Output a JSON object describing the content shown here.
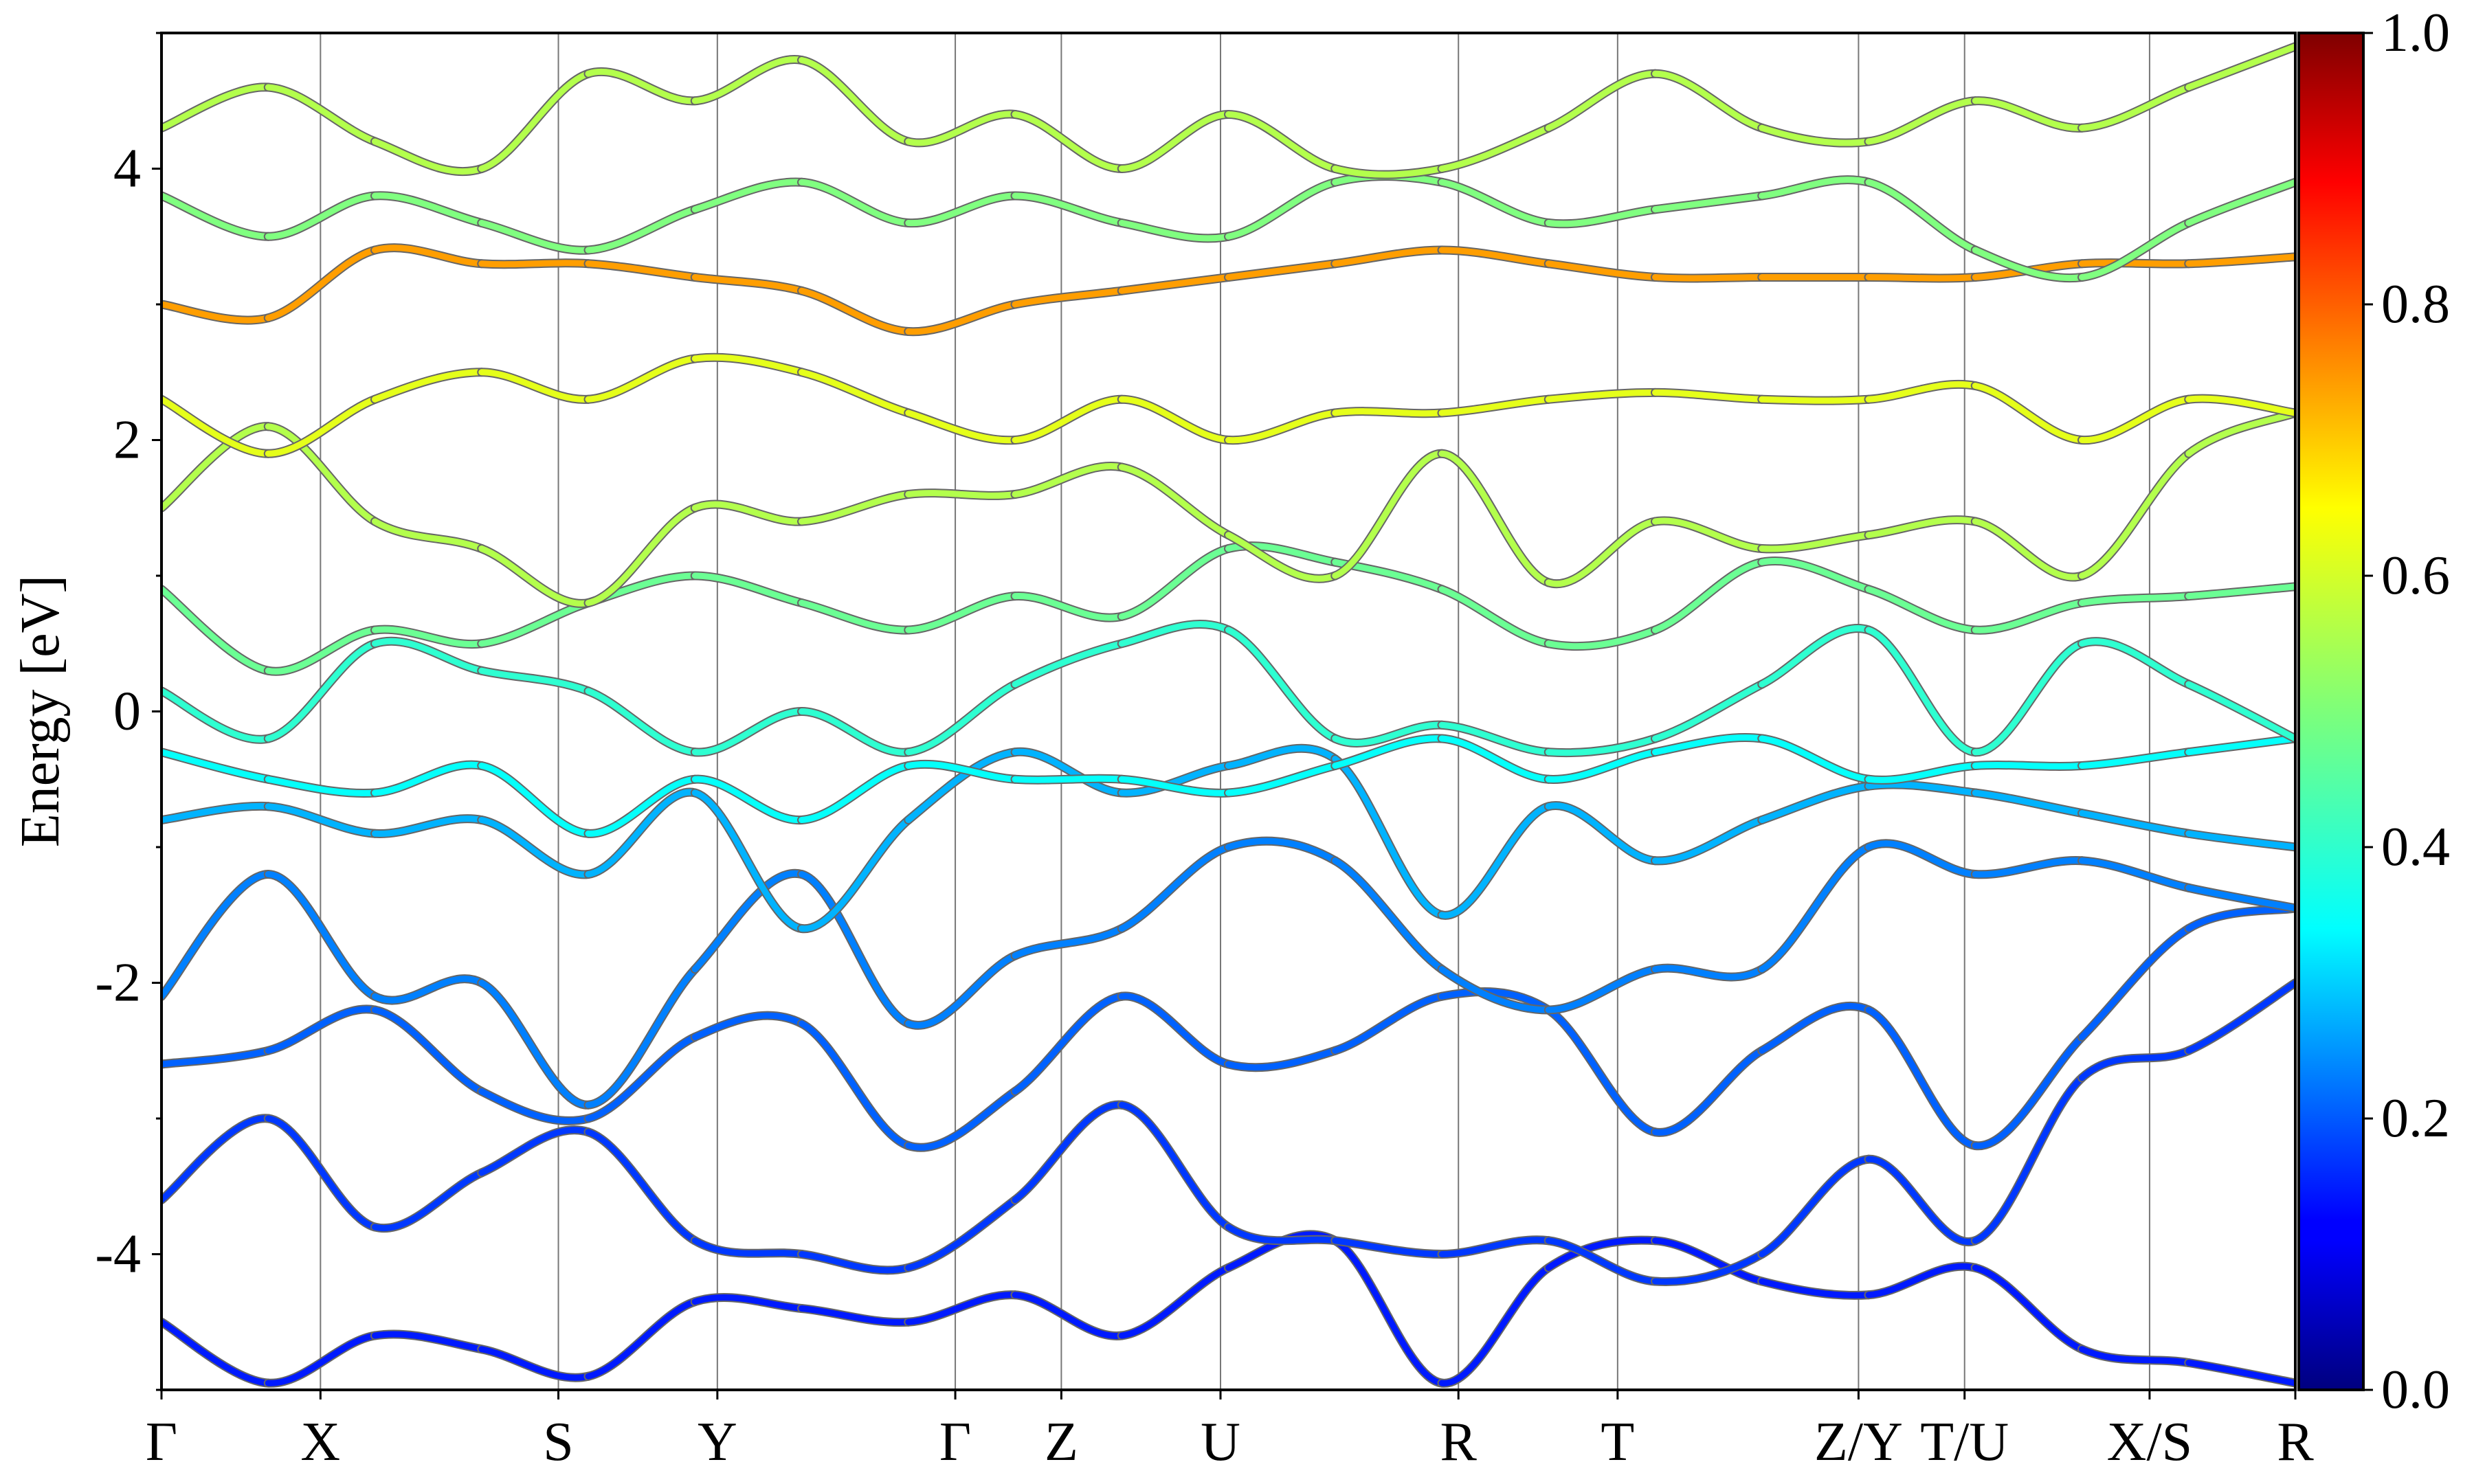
{
  "chart_data": {
    "type": "line",
    "title": "",
    "xlabel": "",
    "ylabel": "Energy [eV]",
    "ylim": [
      -5,
      5
    ],
    "yticks": [
      -4,
      -2,
      0,
      2,
      4
    ],
    "xticks": [
      {
        "label": "Γ",
        "pos": 0.0
      },
      {
        "label": "X",
        "pos": 0.0745
      },
      {
        "label": "S",
        "pos": 0.186
      },
      {
        "label": "Y",
        "pos": 0.2605
      },
      {
        "label": "Γ",
        "pos": 0.372
      },
      {
        "label": "Z",
        "pos": 0.4217
      },
      {
        "label": "U",
        "pos": 0.4963
      },
      {
        "label": "R",
        "pos": 0.6078
      },
      {
        "label": "T",
        "pos": 0.6824
      },
      {
        "label": "Z/Y",
        "pos": 0.7953
      },
      {
        "label": "T/U",
        "pos": 0.845
      },
      {
        "label": "X/S",
        "pos": 0.9317
      },
      {
        "label": "R",
        "pos": 1.0
      }
    ],
    "colorbar": {
      "colormap": "jet",
      "range": [
        0.0,
        1.0
      ],
      "ticks": [
        "0.0",
        "0.2",
        "0.4",
        "0.6",
        "0.8",
        "1.0"
      ]
    },
    "series": [
      {
        "x": [
          0,
          0.05,
          0.1,
          0.15,
          0.2,
          0.25,
          0.3,
          0.35,
          0.4,
          0.45,
          0.5,
          0.55,
          0.6,
          0.65,
          0.7,
          0.75,
          0.8,
          0.85,
          0.9,
          0.95,
          1
        ],
        "values": [
          -4.5,
          -4.95,
          -4.6,
          -4.7,
          -4.9,
          -4.35,
          -4.4,
          -4.5,
          -4.3,
          -4.6,
          -4.1,
          -3.9,
          -4.95,
          -4.1,
          -3.9,
          -4.2,
          -4.3,
          -4.1,
          -4.7,
          -4.8,
          -4.95
        ],
        "weights": [
          0.15,
          0.15,
          0.15,
          0.15,
          0.15,
          0.15,
          0.15,
          0.15,
          0.15,
          0.15,
          0.15,
          0.15,
          0.15,
          0.15,
          0.15,
          0.15,
          0.15,
          0.15,
          0.15,
          0.15,
          0.15
        ]
      },
      {
        "x": [
          0,
          0.05,
          0.1,
          0.15,
          0.2,
          0.25,
          0.3,
          0.35,
          0.4,
          0.45,
          0.5,
          0.55,
          0.6,
          0.65,
          0.7,
          0.75,
          0.8,
          0.85,
          0.9,
          0.95,
          1
        ],
        "values": [
          -3.6,
          -3.0,
          -3.8,
          -3.4,
          -3.1,
          -3.9,
          -4.0,
          -4.1,
          -3.6,
          -2.9,
          -3.8,
          -3.9,
          -4.0,
          -3.9,
          -4.2,
          -4.0,
          -3.3,
          -3.9,
          -2.7,
          -2.5,
          -2.0
        ],
        "weights": [
          0.18,
          0.18,
          0.18,
          0.18,
          0.18,
          0.18,
          0.18,
          0.18,
          0.18,
          0.18,
          0.18,
          0.18,
          0.18,
          0.18,
          0.18,
          0.18,
          0.18,
          0.18,
          0.18,
          0.18,
          0.18
        ]
      },
      {
        "x": [
          0,
          0.05,
          0.1,
          0.15,
          0.2,
          0.25,
          0.3,
          0.35,
          0.4,
          0.45,
          0.5,
          0.55,
          0.6,
          0.65,
          0.7,
          0.75,
          0.8,
          0.85,
          0.9,
          0.95,
          1
        ],
        "values": [
          -2.6,
          -2.5,
          -2.2,
          -2.8,
          -3.0,
          -2.4,
          -2.3,
          -3.2,
          -2.8,
          -2.1,
          -2.6,
          -2.5,
          -2.1,
          -2.2,
          -3.1,
          -2.5,
          -2.2,
          -3.2,
          -2.4,
          -1.6,
          -1.45
        ],
        "weights": [
          0.22,
          0.22,
          0.22,
          0.22,
          0.22,
          0.22,
          0.22,
          0.22,
          0.22,
          0.22,
          0.22,
          0.22,
          0.22,
          0.22,
          0.22,
          0.22,
          0.22,
          0.22,
          0.22,
          0.22,
          0.22
        ]
      },
      {
        "x": [
          0,
          0.05,
          0.1,
          0.15,
          0.2,
          0.25,
          0.3,
          0.35,
          0.4,
          0.45,
          0.5,
          0.55,
          0.6,
          0.65,
          0.7,
          0.75,
          0.8,
          0.85,
          0.9,
          0.95,
          1
        ],
        "values": [
          -2.1,
          -1.2,
          -2.1,
          -2.0,
          -2.9,
          -1.9,
          -1.2,
          -2.3,
          -1.8,
          -1.6,
          -1.0,
          -1.1,
          -1.9,
          -2.2,
          -1.9,
          -1.9,
          -1.0,
          -1.2,
          -1.1,
          -1.3,
          -1.45
        ],
        "weights": [
          0.25,
          0.25,
          0.25,
          0.25,
          0.25,
          0.25,
          0.25,
          0.25,
          0.25,
          0.25,
          0.25,
          0.25,
          0.25,
          0.25,
          0.25,
          0.25,
          0.25,
          0.25,
          0.25,
          0.25,
          0.25
        ]
      },
      {
        "x": [
          0,
          0.05,
          0.1,
          0.15,
          0.2,
          0.25,
          0.3,
          0.35,
          0.4,
          0.45,
          0.5,
          0.55,
          0.6,
          0.65,
          0.7,
          0.75,
          0.8,
          0.85,
          0.9,
          0.95,
          1
        ],
        "values": [
          -0.8,
          -0.7,
          -0.9,
          -0.8,
          -1.2,
          -0.6,
          -1.6,
          -0.8,
          -0.3,
          -0.6,
          -0.4,
          -0.35,
          -1.5,
          -0.7,
          -1.1,
          -0.8,
          -0.55,
          -0.6,
          -0.75,
          -0.9,
          -1.0
        ],
        "weights": [
          0.3,
          0.3,
          0.3,
          0.3,
          0.3,
          0.3,
          0.3,
          0.3,
          0.3,
          0.3,
          0.3,
          0.3,
          0.3,
          0.3,
          0.3,
          0.3,
          0.3,
          0.3,
          0.3,
          0.3,
          0.3
        ]
      },
      {
        "x": [
          0,
          0.05,
          0.1,
          0.15,
          0.2,
          0.25,
          0.3,
          0.35,
          0.4,
          0.45,
          0.5,
          0.55,
          0.6,
          0.65,
          0.7,
          0.75,
          0.8,
          0.85,
          0.9,
          0.95,
          1
        ],
        "values": [
          -0.3,
          -0.5,
          -0.6,
          -0.4,
          -0.9,
          -0.5,
          -0.8,
          -0.4,
          -0.5,
          -0.5,
          -0.6,
          -0.4,
          -0.2,
          -0.5,
          -0.3,
          -0.2,
          -0.5,
          -0.4,
          -0.4,
          -0.3,
          -0.2
        ],
        "weights": [
          0.38,
          0.38,
          0.38,
          0.38,
          0.38,
          0.38,
          0.38,
          0.38,
          0.38,
          0.38,
          0.38,
          0.38,
          0.38,
          0.38,
          0.38,
          0.38,
          0.38,
          0.38,
          0.38,
          0.38,
          0.38
        ]
      },
      {
        "x": [
          0,
          0.05,
          0.1,
          0.15,
          0.2,
          0.25,
          0.3,
          0.35,
          0.4,
          0.45,
          0.5,
          0.55,
          0.6,
          0.65,
          0.7,
          0.75,
          0.8,
          0.85,
          0.9,
          0.95,
          1
        ],
        "values": [
          0.15,
          -0.2,
          0.5,
          0.3,
          0.15,
          -0.3,
          0.0,
          -0.3,
          0.2,
          0.5,
          0.6,
          -0.2,
          -0.1,
          -0.3,
          -0.2,
          0.2,
          0.6,
          -0.3,
          0.5,
          0.2,
          -0.2
        ],
        "weights": [
          0.42,
          0.42,
          0.42,
          0.42,
          0.42,
          0.42,
          0.42,
          0.42,
          0.42,
          0.42,
          0.42,
          0.42,
          0.42,
          0.42,
          0.42,
          0.42,
          0.42,
          0.42,
          0.42,
          0.42,
          0.42
        ]
      },
      {
        "x": [
          0,
          0.05,
          0.1,
          0.15,
          0.2,
          0.25,
          0.3,
          0.35,
          0.4,
          0.45,
          0.5,
          0.55,
          0.6,
          0.65,
          0.7,
          0.75,
          0.8,
          0.85,
          0.9,
          0.95,
          1
        ],
        "values": [
          0.9,
          0.3,
          0.6,
          0.5,
          0.8,
          1.0,
          0.8,
          0.6,
          0.85,
          0.7,
          1.2,
          1.1,
          0.9,
          0.5,
          0.6,
          1.1,
          0.9,
          0.6,
          0.8,
          0.85,
          0.92
        ],
        "weights": [
          0.48,
          0.48,
          0.48,
          0.48,
          0.48,
          0.48,
          0.48,
          0.48,
          0.48,
          0.48,
          0.48,
          0.48,
          0.48,
          0.48,
          0.48,
          0.48,
          0.48,
          0.48,
          0.48,
          0.48,
          0.48
        ]
      },
      {
        "x": [
          0,
          0.05,
          0.1,
          0.15,
          0.2,
          0.25,
          0.3,
          0.35,
          0.4,
          0.45,
          0.5,
          0.55,
          0.6,
          0.65,
          0.7,
          0.75,
          0.8,
          0.85,
          0.9,
          0.95,
          1
        ],
        "values": [
          1.5,
          2.1,
          1.4,
          1.2,
          0.8,
          1.5,
          1.4,
          1.6,
          1.6,
          1.8,
          1.3,
          1.0,
          1.9,
          0.95,
          1.4,
          1.2,
          1.3,
          1.4,
          1.0,
          1.9,
          2.2
        ],
        "weights": [
          0.55,
          0.55,
          0.55,
          0.55,
          0.55,
          0.55,
          0.55,
          0.55,
          0.55,
          0.55,
          0.55,
          0.55,
          0.55,
          0.55,
          0.55,
          0.55,
          0.55,
          0.55,
          0.55,
          0.55,
          0.55
        ]
      },
      {
        "x": [
          0,
          0.05,
          0.1,
          0.15,
          0.2,
          0.25,
          0.3,
          0.35,
          0.4,
          0.45,
          0.5,
          0.55,
          0.6,
          0.65,
          0.7,
          0.75,
          0.8,
          0.85,
          0.9,
          0.95,
          1
        ],
        "values": [
          2.3,
          1.9,
          2.3,
          2.5,
          2.3,
          2.6,
          2.5,
          2.2,
          2.0,
          2.3,
          2.0,
          2.2,
          2.2,
          2.3,
          2.35,
          2.3,
          2.3,
          2.4,
          2.0,
          2.3,
          2.2
        ],
        "weights": [
          0.6,
          0.6,
          0.6,
          0.6,
          0.6,
          0.6,
          0.6,
          0.6,
          0.6,
          0.6,
          0.6,
          0.6,
          0.6,
          0.6,
          0.6,
          0.6,
          0.6,
          0.6,
          0.6,
          0.6,
          0.6
        ]
      },
      {
        "x": [
          0,
          0.05,
          0.1,
          0.15,
          0.2,
          0.25,
          0.3,
          0.35,
          0.4,
          0.45,
          0.5,
          0.55,
          0.6,
          0.65,
          0.7,
          0.75,
          0.8,
          0.85,
          0.9,
          0.95,
          1
        ],
        "values": [
          3.0,
          2.9,
          3.4,
          3.3,
          3.3,
          3.2,
          3.1,
          2.8,
          3.0,
          3.1,
          3.2,
          3.3,
          3.4,
          3.3,
          3.2,
          3.2,
          3.2,
          3.2,
          3.3,
          3.3,
          3.35
        ],
        "weights": [
          0.72,
          0.72,
          0.72,
          0.72,
          0.72,
          0.72,
          0.72,
          0.72,
          0.72,
          0.72,
          0.72,
          0.72,
          0.72,
          0.72,
          0.72,
          0.72,
          0.72,
          0.72,
          0.72,
          0.72,
          0.72
        ]
      },
      {
        "x": [
          0,
          0.05,
          0.1,
          0.15,
          0.2,
          0.25,
          0.3,
          0.35,
          0.4,
          0.45,
          0.5,
          0.55,
          0.6,
          0.65,
          0.7,
          0.75,
          0.8,
          0.85,
          0.9,
          0.95,
          1
        ],
        "values": [
          3.8,
          3.5,
          3.8,
          3.6,
          3.4,
          3.7,
          3.9,
          3.6,
          3.8,
          3.6,
          3.5,
          3.9,
          3.9,
          3.6,
          3.7,
          3.8,
          3.9,
          3.4,
          3.2,
          3.6,
          3.9
        ],
        "weights": [
          0.5,
          0.5,
          0.5,
          0.5,
          0.5,
          0.5,
          0.5,
          0.5,
          0.5,
          0.5,
          0.5,
          0.5,
          0.5,
          0.5,
          0.5,
          0.5,
          0.5,
          0.5,
          0.5,
          0.5,
          0.5
        ]
      },
      {
        "x": [
          0,
          0.05,
          0.1,
          0.15,
          0.2,
          0.25,
          0.3,
          0.35,
          0.4,
          0.45,
          0.5,
          0.55,
          0.6,
          0.65,
          0.7,
          0.75,
          0.8,
          0.85,
          0.9,
          0.95,
          1
        ],
        "values": [
          4.3,
          4.6,
          4.2,
          4.0,
          4.7,
          4.5,
          4.8,
          4.2,
          4.4,
          4.0,
          4.4,
          4.0,
          4.0,
          4.3,
          4.7,
          4.3,
          4.2,
          4.5,
          4.3,
          4.6,
          4.9
        ],
        "weights": [
          0.55,
          0.55,
          0.55,
          0.55,
          0.55,
          0.55,
          0.55,
          0.55,
          0.55,
          0.55,
          0.55,
          0.55,
          0.55,
          0.55,
          0.55,
          0.55,
          0.55,
          0.55,
          0.55,
          0.55,
          0.55
        ]
      }
    ]
  }
}
